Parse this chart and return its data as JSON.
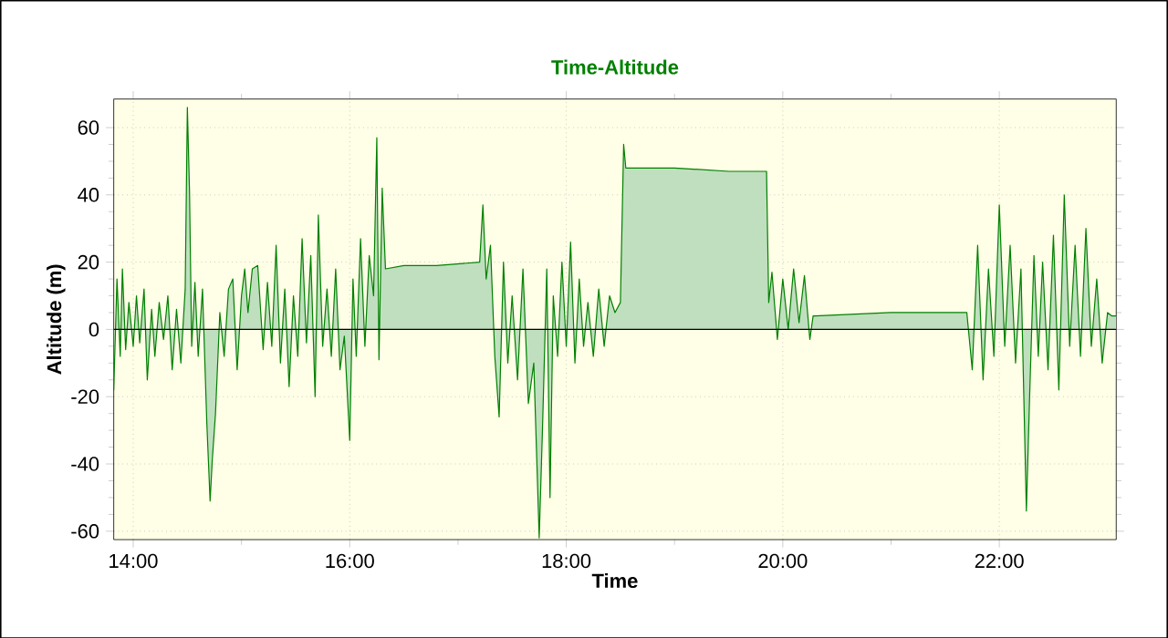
{
  "chart_data": {
    "type": "area",
    "title": "Time-Altitude",
    "xlabel": "Time",
    "ylabel": "Altitude (m)",
    "xlim": [
      13.82,
      23.08
    ],
    "ylim": [
      -62.5,
      68.5
    ],
    "xticks": [
      {
        "value": 14,
        "label": "14:00"
      },
      {
        "value": 16,
        "label": "16:00"
      },
      {
        "value": 18,
        "label": "18:00"
      },
      {
        "value": 20,
        "label": "20:00"
      },
      {
        "value": 22,
        "label": "22:00"
      }
    ],
    "yticks": [
      -60,
      -40,
      -20,
      0,
      20,
      40,
      60
    ],
    "grid": true,
    "series": [
      {
        "color": "#008000",
        "x": [
          13.82,
          13.85,
          13.88,
          13.9,
          13.93,
          13.96,
          14.0,
          14.03,
          14.06,
          14.1,
          14.13,
          14.17,
          14.2,
          14.24,
          14.28,
          14.32,
          14.36,
          14.4,
          14.44,
          14.48,
          14.5,
          14.52,
          14.54,
          14.57,
          14.6,
          14.64,
          14.68,
          14.71,
          14.73,
          14.76,
          14.8,
          14.84,
          14.88,
          14.92,
          14.96,
          15.0,
          15.03,
          15.06,
          15.1,
          15.15,
          15.2,
          15.24,
          15.28,
          15.32,
          15.36,
          15.4,
          15.44,
          15.48,
          15.52,
          15.56,
          15.6,
          15.64,
          15.68,
          15.71,
          15.75,
          15.79,
          15.83,
          15.87,
          15.91,
          15.95,
          16.0,
          16.03,
          16.06,
          16.1,
          16.14,
          16.18,
          16.22,
          16.25,
          16.27,
          16.3,
          16.33,
          16.5,
          16.8,
          17.2,
          17.23,
          17.26,
          17.3,
          17.34,
          17.38,
          17.42,
          17.46,
          17.5,
          17.55,
          17.6,
          17.65,
          17.7,
          17.75,
          17.78,
          17.82,
          17.85,
          17.88,
          17.92,
          17.96,
          18.0,
          18.04,
          18.08,
          18.12,
          18.16,
          18.2,
          18.25,
          18.3,
          18.35,
          18.4,
          18.45,
          18.5,
          18.53,
          18.55,
          18.6,
          19.0,
          19.5,
          19.85,
          19.87,
          19.9,
          19.95,
          20.0,
          20.05,
          20.1,
          20.15,
          20.2,
          20.25,
          20.28,
          20.3,
          21.0,
          21.7,
          21.75,
          21.8,
          21.85,
          21.9,
          21.95,
          22.0,
          22.05,
          22.1,
          22.15,
          22.2,
          22.25,
          22.28,
          22.32,
          22.36,
          22.4,
          22.45,
          22.5,
          22.55,
          22.6,
          22.65,
          22.7,
          22.75,
          22.8,
          22.85,
          22.9,
          22.95,
          23.0,
          23.04,
          23.08
        ],
        "values": [
          -18,
          15,
          -8,
          18,
          -6,
          8,
          -5,
          10,
          -4,
          12,
          -15,
          6,
          -8,
          8,
          -3,
          10,
          -12,
          6,
          -10,
          12,
          66,
          41,
          -5,
          14,
          -8,
          12,
          -28,
          -51,
          -39,
          -25,
          5,
          -8,
          12,
          15,
          -12,
          10,
          18,
          5,
          18,
          19,
          -6,
          14,
          -5,
          25,
          -10,
          12,
          -17,
          10,
          -8,
          27,
          -4,
          22,
          -20,
          34,
          -5,
          12,
          -8,
          18,
          -12,
          -2,
          -33,
          15,
          -8,
          27,
          -5,
          22,
          10,
          57,
          -9,
          42,
          18,
          19,
          19,
          20,
          37,
          15,
          25,
          -8,
          -26,
          20,
          -10,
          10,
          -15,
          18,
          -22,
          -10,
          -62,
          -30,
          18,
          -50,
          10,
          -8,
          20,
          -5,
          26,
          -10,
          15,
          -5,
          8,
          -8,
          12,
          -5,
          10,
          5,
          8,
          55,
          48,
          48,
          48,
          47,
          47,
          8,
          17,
          -3,
          15,
          0,
          18,
          2,
          16,
          -3,
          4,
          4,
          5,
          5,
          -12,
          25,
          -15,
          18,
          -8,
          37,
          -5,
          25,
          -10,
          18,
          -54,
          -20,
          22,
          -8,
          20,
          -12,
          28,
          -18,
          40,
          -5,
          25,
          -8,
          30,
          -5,
          15,
          -10,
          5,
          4,
          4
        ]
      }
    ]
  }
}
